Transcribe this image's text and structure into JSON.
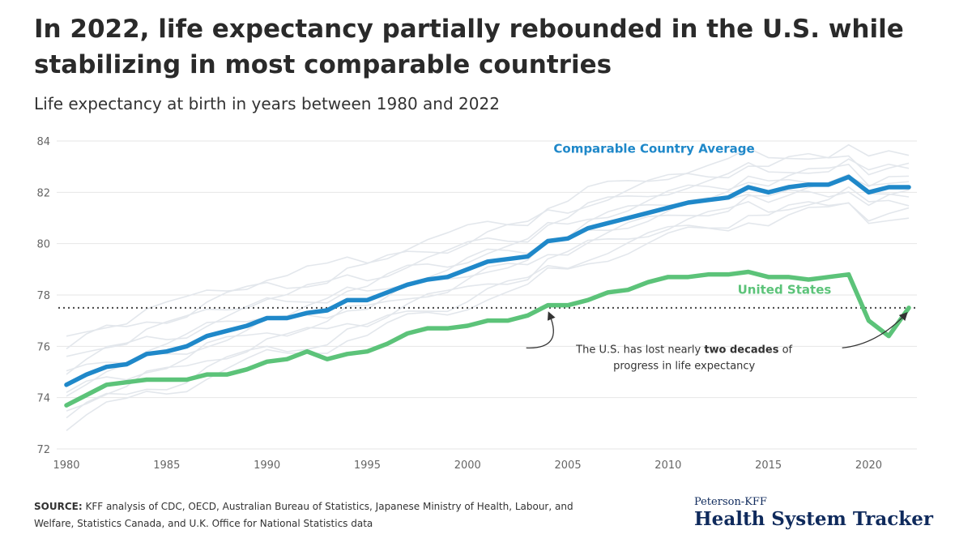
{
  "header": {
    "title": "In 2022, life expectancy partially rebounded in the U.S. while stabilizing in most comparable countries",
    "subtitle": "Life expectancy at birth in years between 1980 and 2022"
  },
  "footer": {
    "source_label": "SOURCE:",
    "source_text": "KFF analysis of CDC, OECD, Australian Bureau of Statistics, Japanese Ministry of Health, Labour, and Welfare, Statistics Canada, and U.K. Office for National Statistics data",
    "logo_top": "Peterson-KFF",
    "logo_main": "Health System Tracker"
  },
  "colors": {
    "comparable": "#1f88c9",
    "us": "#5cc379",
    "background_countries": "#e3e7ec",
    "grid": "#e6e6e6",
    "reference_line": "#444444"
  },
  "chart_data": {
    "type": "line",
    "title": "In 2022, life expectancy partially rebounded in the U.S. while stabilizing in most comparable countries",
    "subtitle": "Life expectancy at birth in years between 1980 and 2022",
    "xlim": [
      1980,
      2022
    ],
    "ylim": [
      72,
      84
    ],
    "x_ticks": [
      1980,
      1985,
      1990,
      1995,
      2000,
      2005,
      2010,
      2015,
      2020
    ],
    "y_ticks": [
      72,
      74,
      76,
      78,
      80,
      82,
      84
    ],
    "grid": "horizontal",
    "x": [
      1980,
      1981,
      1982,
      1983,
      1984,
      1985,
      1986,
      1987,
      1988,
      1989,
      1990,
      1991,
      1992,
      1993,
      1994,
      1995,
      1996,
      1997,
      1998,
      1999,
      2000,
      2001,
      2002,
      2003,
      2004,
      2005,
      2006,
      2007,
      2008,
      2009,
      2010,
      2011,
      2012,
      2013,
      2014,
      2015,
      2016,
      2017,
      2018,
      2019,
      2020,
      2021,
      2022
    ],
    "series": [
      {
        "name": "Comparable Country Average",
        "color": "#1f88c9",
        "values": [
          74.5,
          74.9,
          75.2,
          75.3,
          75.7,
          75.8,
          76.0,
          76.4,
          76.6,
          76.8,
          77.1,
          77.1,
          77.3,
          77.4,
          77.8,
          77.8,
          78.1,
          78.4,
          78.6,
          78.7,
          79.0,
          79.3,
          79.4,
          79.5,
          80.1,
          80.2,
          80.6,
          80.8,
          81.0,
          81.2,
          81.4,
          81.6,
          81.7,
          81.8,
          82.2,
          82.0,
          82.2,
          82.3,
          82.3,
          82.6,
          82.0,
          82.2,
          82.2
        ]
      },
      {
        "name": "United States",
        "color": "#5cc379",
        "values": [
          73.7,
          74.1,
          74.5,
          74.6,
          74.7,
          74.7,
          74.7,
          74.9,
          74.9,
          75.1,
          75.4,
          75.5,
          75.8,
          75.5,
          75.7,
          75.8,
          76.1,
          76.5,
          76.7,
          76.7,
          76.8,
          77.0,
          77.0,
          77.2,
          77.6,
          77.6,
          77.8,
          78.1,
          78.2,
          78.5,
          78.7,
          78.7,
          78.8,
          78.8,
          78.9,
          78.7,
          78.7,
          78.6,
          78.7,
          78.8,
          77.0,
          76.4,
          77.5
        ]
      }
    ],
    "background_countries_offsets": [
      1.4,
      1.0,
      0.6,
      0.3,
      -0.2,
      -0.5,
      -0.9,
      -1.3,
      1.8,
      -1.6
    ],
    "reference_line_value": 77.5,
    "annotation": {
      "text_before": "The U.S. has lost nearly ",
      "text_bold": "two decades",
      "text_after": " of",
      "line2": "progress in life expectancy",
      "arrow_targets_x": [
        2004,
        2022
      ]
    }
  }
}
